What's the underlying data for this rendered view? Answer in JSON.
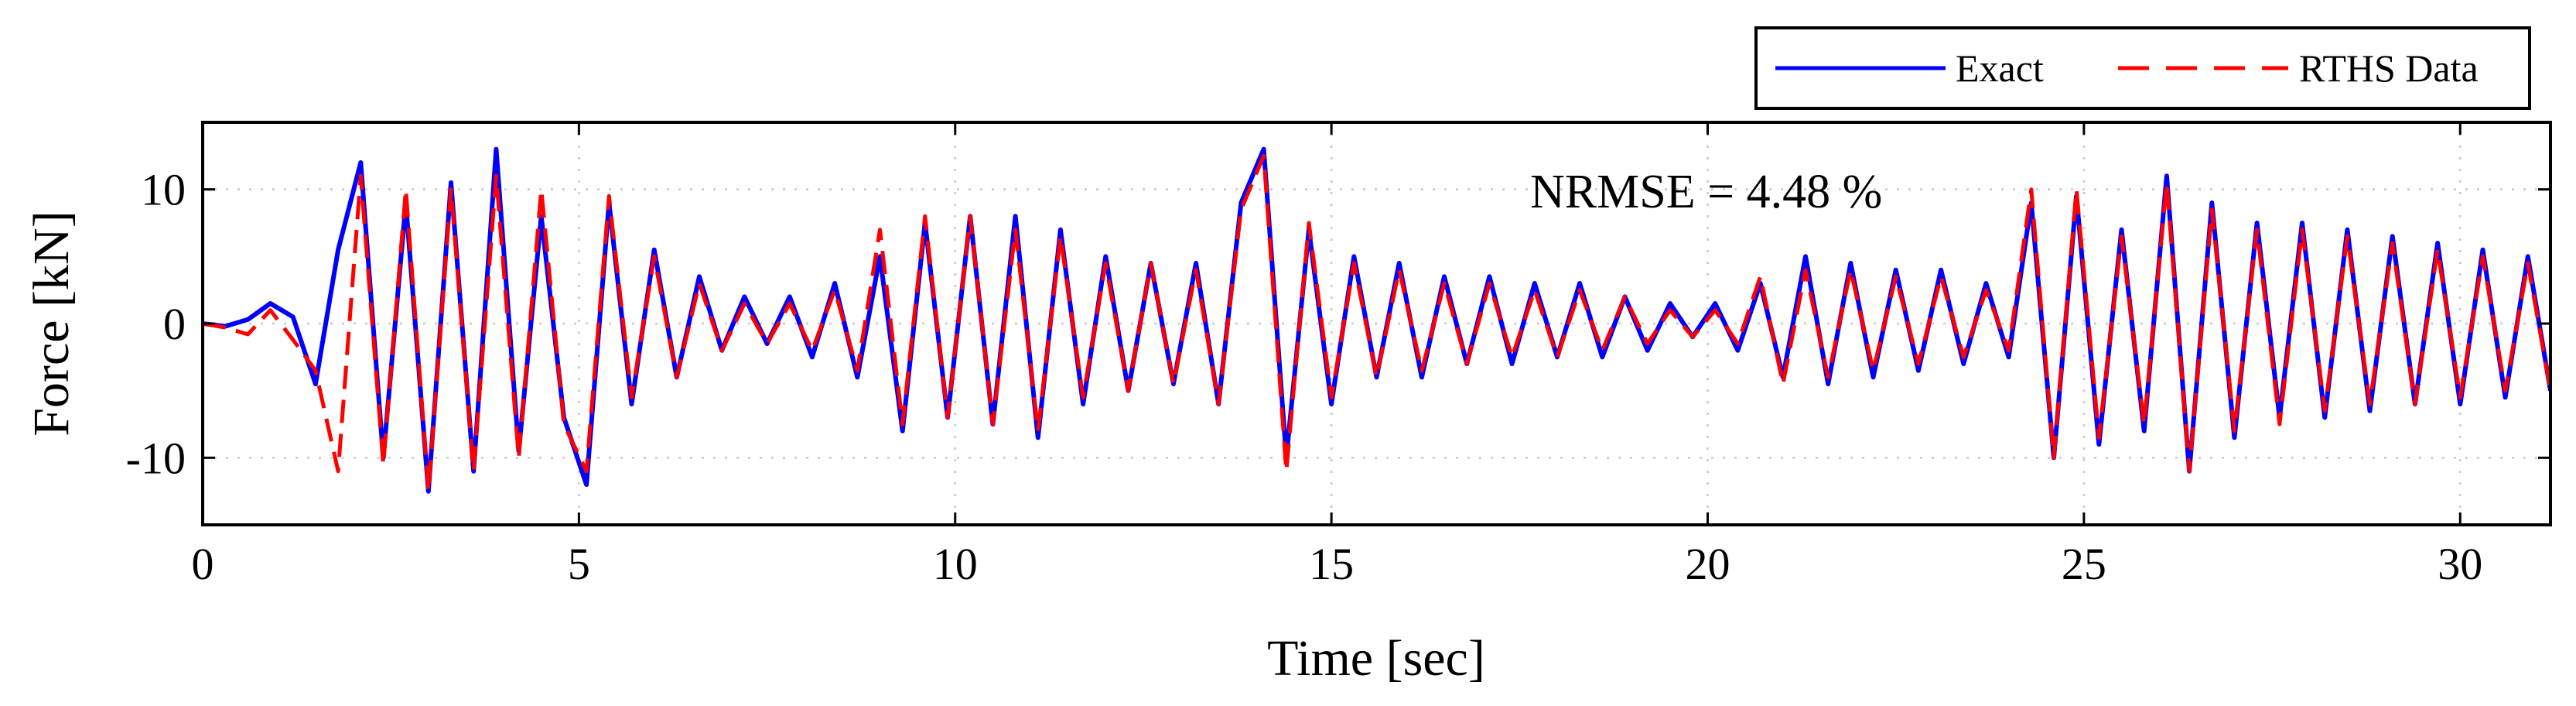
{
  "chart_data": {
    "type": "line",
    "xlabel": "Time [sec]",
    "ylabel": "Force [kN]",
    "xlim": [
      0,
      31.2
    ],
    "ylim": [
      -15,
      15
    ],
    "xticks": [
      0,
      5,
      10,
      15,
      20,
      25,
      30
    ],
    "yticks": [
      -10,
      0,
      10
    ],
    "grid": true,
    "legend_position": "top-right, outside plot",
    "annotation": "NRMSE = 4.48 %",
    "series": [
      {
        "name": "Exact",
        "color": "#0000ff",
        "line_style": "solid",
        "x": [
          0,
          0.3,
          0.6,
          0.9,
          1.2,
          1.5,
          1.8,
          2.1,
          2.4,
          2.7,
          3.0,
          3.3,
          3.6,
          3.9,
          4.2,
          4.5,
          4.8,
          5.1,
          5.4,
          5.7,
          6.0,
          6.3,
          6.6,
          6.9,
          7.2,
          7.5,
          7.8,
          8.1,
          8.4,
          8.7,
          9.0,
          9.3,
          9.6,
          9.9,
          10.2,
          10.5,
          10.8,
          11.1,
          11.4,
          11.7,
          12.0,
          12.3,
          12.6,
          12.9,
          13.2,
          13.5,
          13.8,
          14.1,
          14.4,
          14.7,
          15.0,
          15.3,
          15.6,
          15.9,
          16.2,
          16.5,
          16.8,
          17.1,
          17.4,
          17.7,
          18.0,
          18.3,
          18.6,
          18.9,
          19.2,
          19.5,
          19.8,
          20.1,
          20.4,
          20.7,
          21.0,
          21.3,
          21.6,
          21.9,
          22.2,
          22.5,
          22.8,
          23.1,
          23.4,
          23.7,
          24.0,
          24.3,
          24.6,
          24.9,
          25.2,
          25.5,
          25.8,
          26.1,
          26.4,
          26.7,
          27.0,
          27.3,
          27.6,
          27.9,
          28.2,
          28.5,
          28.8,
          29.1,
          29.4,
          29.7,
          30.0,
          30.3,
          30.6,
          30.9,
          31.2
        ],
        "y": [
          0,
          -0.2,
          0.3,
          1.5,
          0.5,
          -4.5,
          5.5,
          12.0,
          -10.0,
          9.0,
          -12.5,
          10.5,
          -11.0,
          13.0,
          -9.5,
          8.0,
          -7.0,
          -12.0,
          9.0,
          -6.0,
          5.5,
          -4.0,
          3.5,
          -2.0,
          2.0,
          -1.5,
          2.0,
          -2.5,
          3.0,
          -4.0,
          5.0,
          -8.0,
          7.5,
          -7.0,
          8.0,
          -7.5,
          8.0,
          -8.5,
          7.0,
          -6.0,
          5.0,
          -5.0,
          4.5,
          -4.5,
          4.5,
          -6.0,
          9.0,
          13.0,
          -10.0,
          7.0,
          -6.0,
          5.0,
          -4.0,
          4.5,
          -4.0,
          3.5,
          -3.0,
          3.5,
          -3.0,
          3.0,
          -2.5,
          3.0,
          -2.5,
          2.0,
          -2.0,
          1.5,
          -1.0,
          1.5,
          -2.0,
          3.0,
          -4.0,
          5.0,
          -4.5,
          4.5,
          -4.0,
          4.0,
          -3.5,
          4.0,
          -3.0,
          3.0,
          -2.5,
          9.0,
          -10.0,
          9.5,
          -9.0,
          7.0,
          -8.0,
          11.0,
          -11.0,
          9.0,
          -8.5,
          7.5,
          -7.0,
          7.5,
          -7.0,
          7.0,
          -6.5,
          6.5,
          -6.0,
          6.0,
          -6.0,
          5.5,
          -5.5,
          5.0,
          -5.0
        ]
      },
      {
        "name": "RTHS Data",
        "color": "#ff0000",
        "line_style": "dashed",
        "x": [
          0,
          0.3,
          0.6,
          0.9,
          1.2,
          1.5,
          1.8,
          2.1,
          2.4,
          2.7,
          3.0,
          3.3,
          3.6,
          3.9,
          4.2,
          4.5,
          4.8,
          5.1,
          5.4,
          5.7,
          6.0,
          6.3,
          6.6,
          6.9,
          7.2,
          7.5,
          7.8,
          8.1,
          8.4,
          8.7,
          9.0,
          9.3,
          9.6,
          9.9,
          10.2,
          10.5,
          10.8,
          11.1,
          11.4,
          11.7,
          12.0,
          12.3,
          12.6,
          12.9,
          13.2,
          13.5,
          13.8,
          14.1,
          14.4,
          14.7,
          15.0,
          15.3,
          15.6,
          15.9,
          16.2,
          16.5,
          16.8,
          17.1,
          17.4,
          17.7,
          18.0,
          18.3,
          18.6,
          18.9,
          19.2,
          19.5,
          19.8,
          20.1,
          20.4,
          20.7,
          21.0,
          21.3,
          21.6,
          21.9,
          22.2,
          22.5,
          22.8,
          23.1,
          23.4,
          23.7,
          24.0,
          24.3,
          24.6,
          24.9,
          25.2,
          25.5,
          25.8,
          26.1,
          26.4,
          26.7,
          27.0,
          27.3,
          27.6,
          27.9,
          28.2,
          28.5,
          28.8,
          29.1,
          29.4,
          29.7,
          30.0,
          30.3,
          30.6,
          30.9,
          31.2
        ],
        "y": [
          0,
          -0.3,
          -0.8,
          1.0,
          -1.2,
          -3.5,
          -11.0,
          11.0,
          -10.5,
          10.0,
          -12.5,
          10.0,
          -11.0,
          11.0,
          -10.0,
          10.0,
          -7.5,
          -11.0,
          9.5,
          -5.5,
          5.0,
          -4.0,
          3.0,
          -2.0,
          1.5,
          -1.5,
          1.5,
          -2.0,
          2.5,
          -3.5,
          7.0,
          -7.5,
          8.0,
          -7.0,
          8.0,
          -7.5,
          7.0,
          -8.0,
          6.5,
          -5.5,
          4.5,
          -5.0,
          4.5,
          -4.5,
          4.0,
          -6.0,
          8.5,
          12.5,
          -11.0,
          7.5,
          -5.5,
          4.5,
          -4.0,
          4.0,
          -3.5,
          3.0,
          -3.0,
          3.0,
          -2.5,
          2.5,
          -2.5,
          2.5,
          -2.0,
          2.0,
          -1.5,
          1.0,
          -1.0,
          1.0,
          -1.5,
          3.5,
          -4.5,
          4.0,
          -4.0,
          4.0,
          -3.5,
          3.5,
          -3.0,
          3.5,
          -2.5,
          2.5,
          -2.0,
          10.0,
          -10.0,
          10.0,
          -8.5,
          6.5,
          -7.5,
          10.5,
          -11.0,
          8.5,
          -8.0,
          7.0,
          -7.5,
          7.0,
          -6.5,
          6.5,
          -6.0,
          6.0,
          -6.0,
          5.5,
          -5.5,
          5.0,
          -5.0,
          4.5,
          -5.0
        ]
      }
    ]
  }
}
